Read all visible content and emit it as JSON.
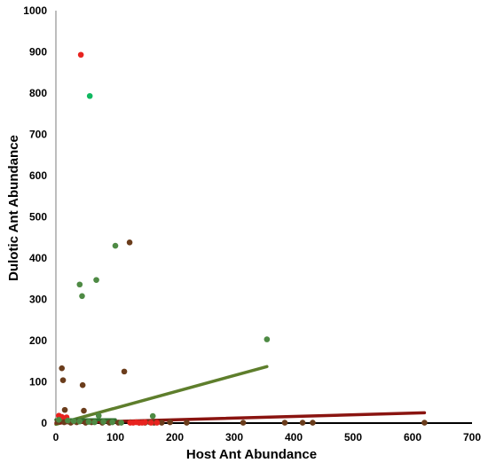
{
  "chart_data": {
    "type": "scatter",
    "title": "",
    "xlabel": "Host Ant Abundance",
    "ylabel": "Dulotic Ant Abundance",
    "xlim": [
      0,
      700
    ],
    "ylim": [
      0,
      1000
    ],
    "xticks": [
      0,
      100,
      200,
      300,
      400,
      500,
      600,
      700
    ],
    "yticks": [
      0,
      100,
      200,
      300,
      400,
      500,
      600,
      700,
      800,
      900,
      1000
    ],
    "grid": false,
    "legend": "none",
    "series": [
      {
        "color": "#6b3d1c",
        "points": [
          [
            10,
            133
          ],
          [
            12,
            104
          ],
          [
            15,
            32
          ],
          [
            45,
            92
          ],
          [
            47,
            30
          ],
          [
            115,
            125
          ],
          [
            124,
            438
          ],
          [
            3,
            3
          ],
          [
            14,
            2
          ],
          [
            25,
            1
          ],
          [
            35,
            2
          ],
          [
            50,
            1
          ],
          [
            60,
            2
          ],
          [
            78,
            1
          ],
          [
            90,
            1
          ],
          [
            105,
            1
          ],
          [
            125,
            2
          ],
          [
            140,
            1
          ],
          [
            150,
            1
          ],
          [
            158,
            2
          ],
          [
            165,
            1
          ],
          [
            178,
            1
          ],
          [
            192,
            2
          ],
          [
            220,
            1
          ],
          [
            315,
            1
          ],
          [
            385,
            1
          ],
          [
            415,
            1
          ],
          [
            432,
            1
          ],
          [
            620,
            1
          ]
        ]
      },
      {
        "color": "#e8231f",
        "points": [
          [
            42,
            893
          ],
          [
            5,
            18
          ],
          [
            10,
            15
          ],
          [
            18,
            14
          ],
          [
            125,
            1
          ],
          [
            130,
            1
          ],
          [
            135,
            2
          ],
          [
            140,
            1
          ],
          [
            145,
            1
          ],
          [
            150,
            2
          ],
          [
            160,
            1
          ],
          [
            170,
            1
          ]
        ]
      },
      {
        "color": "#10b860",
        "points": [
          [
            57,
            793
          ]
        ]
      },
      {
        "color": "#4e8a44",
        "points": [
          [
            100,
            430
          ],
          [
            68,
            347
          ],
          [
            40,
            336
          ],
          [
            44,
            308
          ],
          [
            355,
            203
          ],
          [
            163,
            17
          ],
          [
            72,
            18
          ],
          [
            5,
            8
          ],
          [
            20,
            6
          ],
          [
            30,
            5
          ],
          [
            40,
            4
          ],
          [
            55,
            3
          ],
          [
            65,
            2
          ],
          [
            80,
            3
          ],
          [
            95,
            2
          ],
          [
            110,
            1
          ]
        ]
      }
    ],
    "trendlines": [
      {
        "color": "#5e7e2c",
        "x": [
          0,
          355
        ],
        "y": [
          -3,
          137
        ]
      },
      {
        "color": "#8a1410",
        "x": [
          0,
          620
        ],
        "y": [
          0,
          25
        ]
      },
      {
        "color": "#2f6e2c",
        "x": [
          0,
          100
        ],
        "y": [
          8,
          8
        ]
      }
    ]
  }
}
